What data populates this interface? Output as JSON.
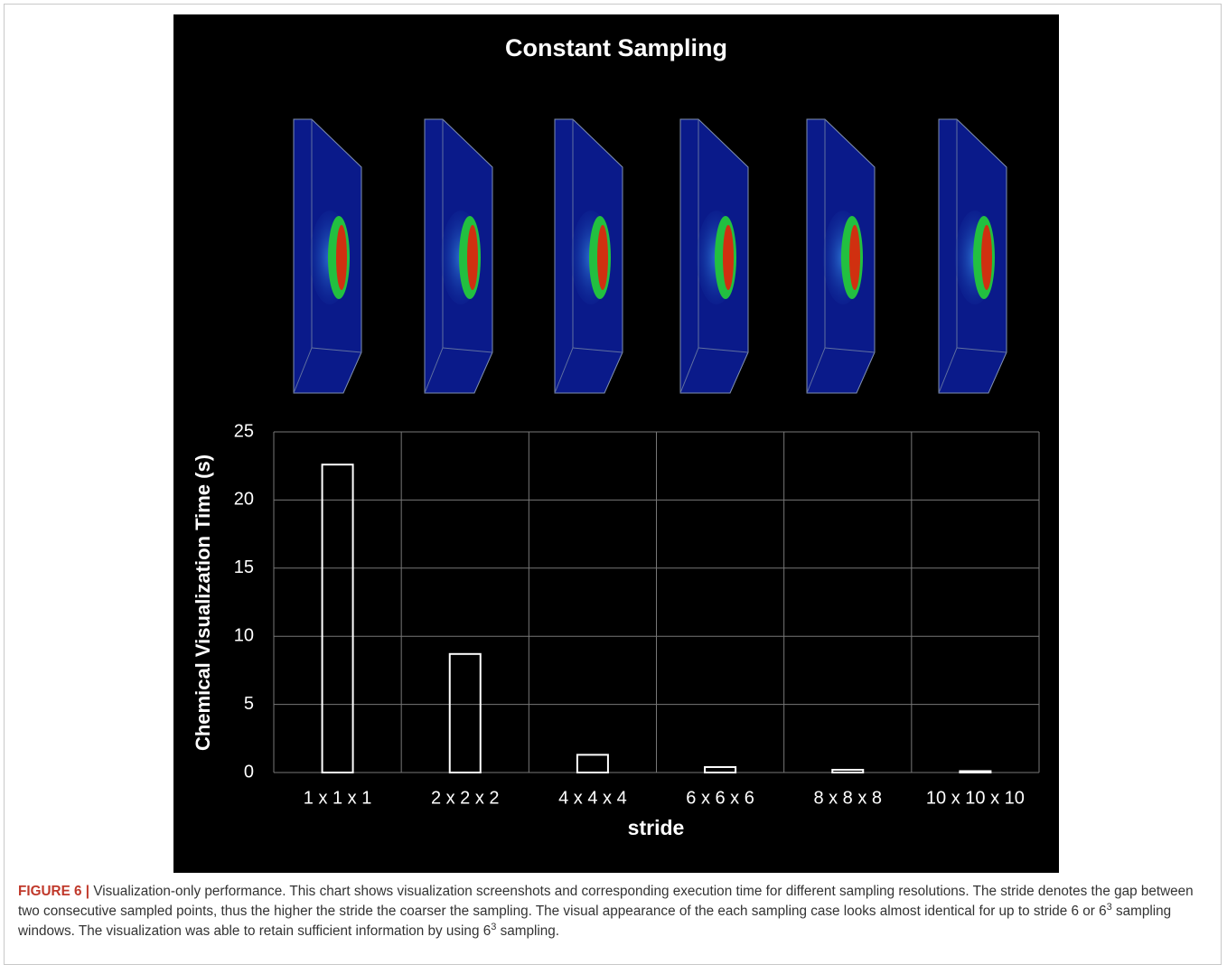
{
  "chart_data": {
    "type": "bar",
    "title": "Constant Sampling",
    "y_label": "Chemical Visualization Time (s)",
    "x_label": "stride",
    "categories": [
      "1 x 1 x 1",
      "2 x 2 x 2",
      "4 x 4 x 4",
      "6 x 6 x 6",
      "8 x 8 x 8",
      "10 x 10 x 10"
    ],
    "values": [
      22.6,
      8.7,
      1.3,
      0.4,
      0.2,
      0.1
    ],
    "color": "#ffffff",
    "ylim": [
      0,
      25
    ],
    "yticks": [
      0,
      5,
      10,
      15,
      20,
      25
    ],
    "grid": true
  },
  "caption": {
    "label": "FIGURE 6 |",
    "parts": [
      "Visualization-only performance. This chart shows visualization screenshots and corresponding execution time for different sampling resolutions. The stride denotes the gap between two consecutive sampled points, thus the higher the stride the coarser the sampling. The visual appearance of the each sampling case looks almost identical for up to stride 6 or 6",
      "3",
      " sampling windows. The visualization was able to retain sufficient information by using 6",
      "3",
      " sampling."
    ]
  }
}
